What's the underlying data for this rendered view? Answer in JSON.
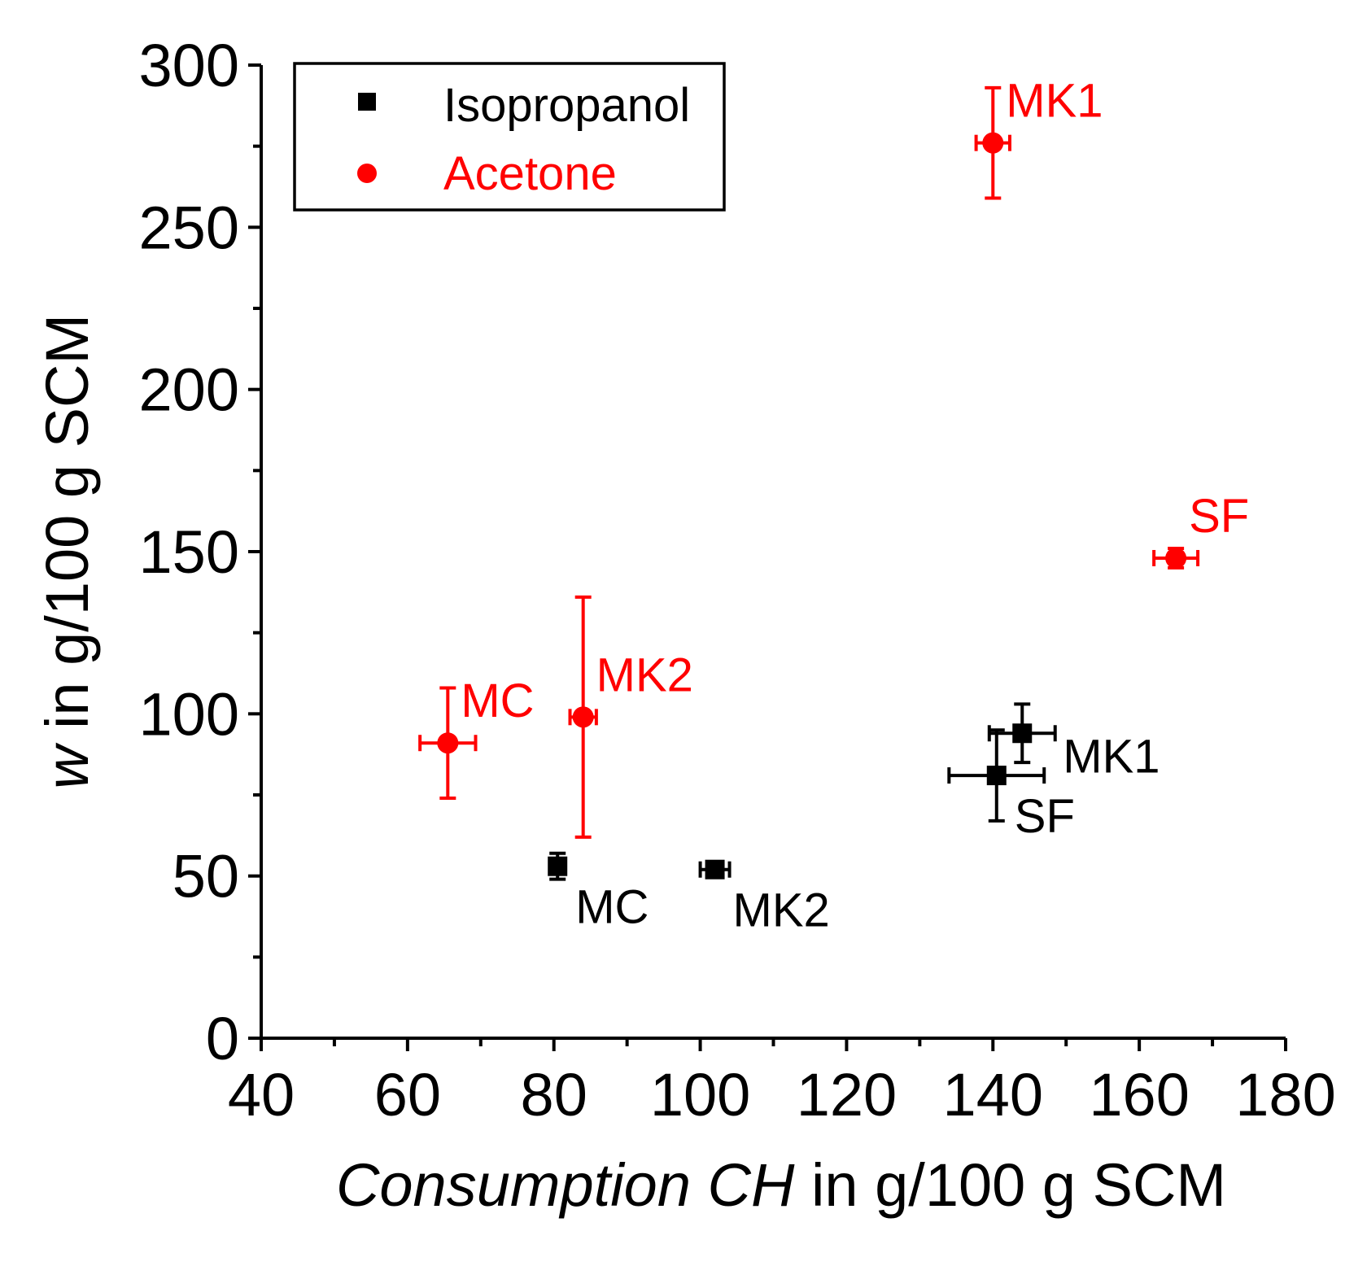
{
  "chart_data": {
    "type": "scatter",
    "xlabel": {
      "italic": "Consumption CH",
      "rest": " in g/100 g SCM"
    },
    "ylabel": {
      "italic": "w",
      "rest": " in g/100 g SCM"
    },
    "xlim": [
      40,
      180
    ],
    "ylim": [
      0,
      300
    ],
    "x_ticks": [
      40,
      60,
      80,
      100,
      120,
      140,
      160,
      180
    ],
    "y_ticks": [
      0,
      50,
      100,
      150,
      200,
      250,
      300
    ],
    "legend_position": "top-left",
    "series": [
      {
        "name": "Isopropanol",
        "marker": "square",
        "color": "#000000",
        "points": [
          {
            "label": "MC",
            "x": 80.5,
            "y": 53,
            "xerr": 1.0,
            "yerr": 4,
            "label_pos": "below-right"
          },
          {
            "label": "MK2",
            "x": 102,
            "y": 52,
            "xerr": 2.0,
            "yerr": 2,
            "label_pos": "below-right"
          },
          {
            "label": "MK1",
            "x": 144,
            "y": 94,
            "xerr": 4.5,
            "yerr": 9,
            "label_pos": "right-below"
          },
          {
            "label": "SF",
            "x": 140.5,
            "y": 81,
            "xerr": 6.5,
            "yerr": 14,
            "label_pos": "below-right"
          }
        ]
      },
      {
        "name": "Acetone",
        "marker": "circle",
        "color": "#ff0000",
        "points": [
          {
            "label": "MC",
            "x": 65.5,
            "y": 91,
            "xerr": 3.8,
            "yerr": 17,
            "label_pos": "above-right"
          },
          {
            "label": "MK2",
            "x": 84,
            "y": 99,
            "xerr": 1.8,
            "yerr": 37,
            "label_pos": "above-right"
          },
          {
            "label": "MK1",
            "x": 140,
            "y": 276,
            "xerr": 2.3,
            "yerr": 17,
            "label_pos": "above-right"
          },
          {
            "label": "SF",
            "x": 165,
            "y": 148,
            "xerr": 3.0,
            "yerr": 3,
            "label_pos": "above-right"
          }
        ]
      }
    ]
  }
}
